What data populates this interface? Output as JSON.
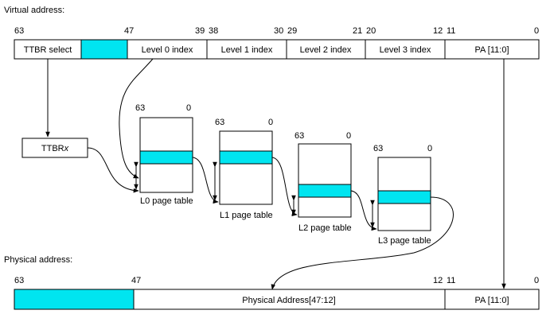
{
  "virtual": {
    "heading": "Virtual address:",
    "bits": [
      "63",
      "47",
      "39",
      "38",
      "30",
      "29",
      "21",
      "20",
      "12",
      "11",
      "0"
    ],
    "fields": [
      "TTBR select",
      "",
      "Level 0 index",
      "Level 1 index",
      "Level 2 index",
      "Level 3 index",
      "PA [11:0]"
    ]
  },
  "ttbr": {
    "label_prefix": "TTBR",
    "label_suffix": "x"
  },
  "tables": [
    {
      "label": "L0 page table",
      "bit_hi": "63",
      "bit_lo": "0"
    },
    {
      "label": "L1 page table",
      "bit_hi": "63",
      "bit_lo": "0"
    },
    {
      "label": "L2 page table",
      "bit_hi": "63",
      "bit_lo": "0"
    },
    {
      "label": "L3 page table",
      "bit_hi": "63",
      "bit_lo": "0"
    }
  ],
  "physical": {
    "heading": "Physical address:",
    "bits": [
      "63",
      "47",
      "12",
      "11",
      "0"
    ],
    "fields": [
      "",
      "Physical Address[47:12]",
      "PA [11:0]"
    ]
  },
  "colors": {
    "highlight": "#00e5f0",
    "line": "#000000"
  }
}
